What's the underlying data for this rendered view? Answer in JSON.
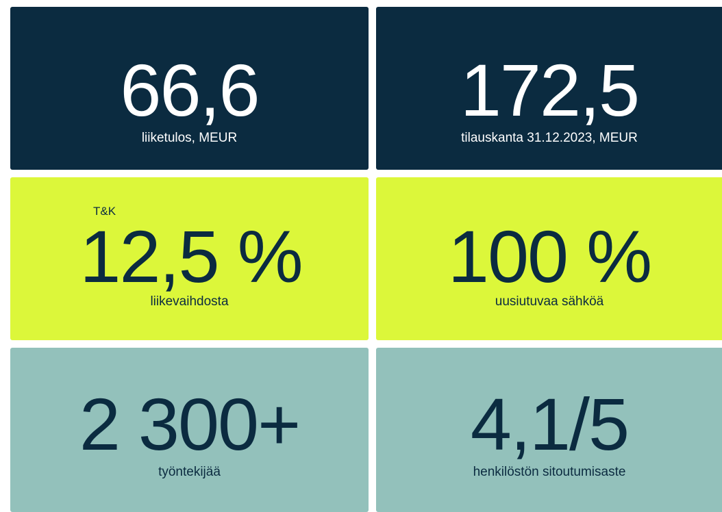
{
  "cards": [
    {
      "value": "66,6",
      "label": "liiketulos, MEUR"
    },
    {
      "value": "172,5",
      "label": "tilauskanta 31.12.2023, MEUR"
    },
    {
      "prefix": "T&K",
      "value": "12,5 %",
      "label": "liikevaihdosta"
    },
    {
      "value": "100 %",
      "label": "uusiutuvaa sähköä"
    },
    {
      "value": "2 300+",
      "label": "työntekijää"
    },
    {
      "value": "4,1/5",
      "label": "henkilöstön sitoutumisaste"
    }
  ]
}
